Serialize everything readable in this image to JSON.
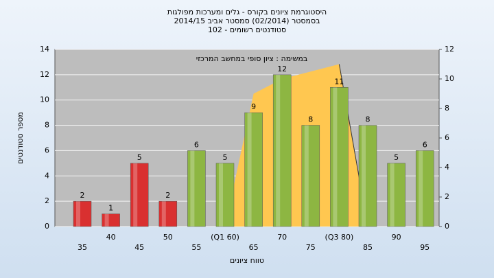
{
  "chart_data": {
    "type": "bar",
    "title": [
      "היסטוגרמת ציונים בקורס - גלים ומערכות מפולגות",
      "בסמסטר  (02/2014)  סמסטר אביב 2014/15",
      "סטודנטים רשומים - 102"
    ],
    "annotation": "במשימה : ציון סופי במחשב המרכזי",
    "xlabel": "טווח ציונים",
    "ylabel": "מספר סטודנטים",
    "categories": [
      "35",
      "40",
      "45",
      "50",
      "55",
      "(Q1 60)",
      "65",
      "70",
      "75",
      "(Q3 80)",
      "85",
      "90",
      "95"
    ],
    "values": [
      2,
      1,
      5,
      2,
      6,
      5,
      9,
      12,
      8,
      11,
      8,
      5,
      6
    ],
    "colors": [
      "#d93030",
      "#d93030",
      "#d93030",
      "#d93030",
      "#8db642",
      "#8db642",
      "#8db642",
      "#8db642",
      "#8db642",
      "#8db642",
      "#8db642",
      "#8db642",
      "#8db642"
    ],
    "area": {
      "axis": "y2",
      "color": "#ffc750",
      "values": [
        null,
        null,
        null,
        null,
        null,
        0,
        9,
        10,
        10.5,
        11,
        0,
        null,
        null
      ]
    },
    "ylim": [
      0,
      14
    ],
    "yticks": [
      0,
      2,
      4,
      6,
      8,
      10,
      12,
      14
    ],
    "y2lim": [
      0,
      12
    ],
    "y2ticks": [
      0,
      2,
      4,
      6,
      8,
      10,
      12
    ],
    "grid": true
  }
}
